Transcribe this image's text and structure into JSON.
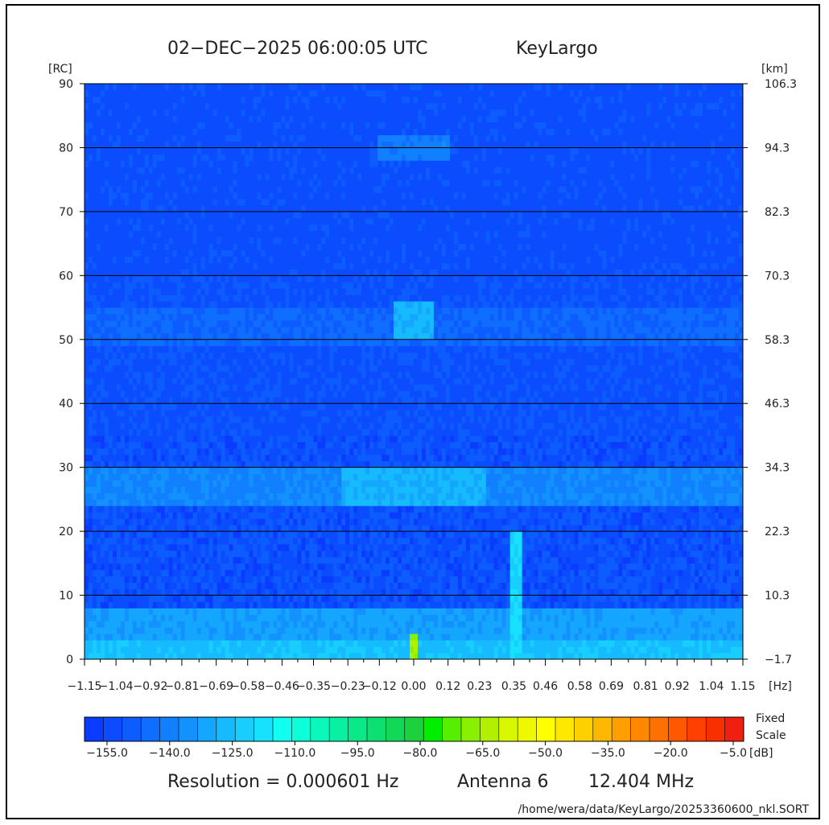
{
  "header": {
    "timestamp": "02−DEC−2025 06:00:05 UTC",
    "station": "KeyLargo"
  },
  "axes": {
    "left_unit": "[RC]",
    "right_unit": "[km]",
    "x_unit": "[Hz]"
  },
  "colorbar": {
    "label_line1": "Fixed",
    "label_line2": "Scale",
    "unit": "[dB]",
    "ticks": [
      "−155.0",
      "−140.0",
      "−125.0",
      "−110.0",
      "−95.0",
      "−80.0",
      "−65.0",
      "−50.0",
      "−35.0",
      "−20.0",
      "−5.0"
    ],
    "colors": [
      "#0a3cff",
      "#0b4cff",
      "#0d5cff",
      "#0f6eff",
      "#1180ff",
      "#1392ff",
      "#15a6ff",
      "#16baff",
      "#17ceff",
      "#16e2ff",
      "#10fff0",
      "#0cffd8",
      "#0af8bc",
      "#0af0a2",
      "#0ae888",
      "#0ce070",
      "#12d858",
      "#1cd040",
      "#00ee00",
      "#58ee00",
      "#88f000",
      "#b0f000",
      "#d8f800",
      "#f0f800",
      "#ffff00",
      "#ffe800",
      "#ffd000",
      "#ffb800",
      "#ffa000",
      "#ff8800",
      "#ff7000",
      "#ff5800",
      "#ff4000",
      "#f83000",
      "#f02010"
    ]
  },
  "footer": {
    "resolution": "Resolution = 0.000601 Hz",
    "antenna": "Antenna  6",
    "frequency": "12.404 MHz",
    "path": "/home/wera/data/KeyLargo/20253360600_nkl.SORT"
  },
  "chart_data": {
    "type": "heatmap",
    "x_label": "[Hz]",
    "y_label_left": "[RC]",
    "y_label_right": "[km]",
    "x_ticks": [
      -1.15,
      -1.04,
      -0.92,
      -0.81,
      -0.69,
      -0.58,
      -0.46,
      -0.35,
      -0.23,
      -0.12,
      0.0,
      0.12,
      0.23,
      0.35,
      0.46,
      0.58,
      0.69,
      0.81,
      0.92,
      1.04,
      1.15
    ],
    "x_tick_labels": [
      "−1.15",
      "−1.04",
      "−0.92",
      "−0.81",
      "−0.69",
      "−0.58",
      "−0.46",
      "−0.35",
      "−0.23",
      "−0.12",
      "0.00",
      "0.12",
      "0.23",
      "0.35",
      "0.46",
      "0.58",
      "0.69",
      "0.81",
      "0.92",
      "1.04",
      "1.15"
    ],
    "y_left_ticks": [
      0,
      10,
      20,
      30,
      40,
      50,
      60,
      70,
      80,
      90
    ],
    "y_right_tick_labels": [
      "−1.7",
      "10.3",
      "22.3",
      "34.3",
      "46.3",
      "58.3",
      "70.3",
      "82.3",
      "94.3",
      "106.3"
    ],
    "xlim": [
      -1.15,
      1.15
    ],
    "ylim": [
      0,
      90
    ],
    "color_scale_db": [
      -160,
      -2.5
    ],
    "background_level_db": -152,
    "features": [
      {
        "x_center": 0.0,
        "y_center": 80,
        "x_halfwidth": 0.12,
        "y_halfwidth": 2,
        "level_db": -140
      },
      {
        "x_center": 0.0,
        "y_center": 53,
        "x_halfwidth": 0.06,
        "y_halfwidth": 2.5,
        "level_db": -128
      },
      {
        "x_center": 0.0,
        "y_center": 52,
        "x_halfwidth": 1.15,
        "y_halfwidth": 3,
        "level_db": -146
      },
      {
        "x_center": 0.0,
        "y_center": 27,
        "x_halfwidth": 1.15,
        "y_halfwidth": 3,
        "level_db": -138
      },
      {
        "x_center": 0.0,
        "y_center": 27,
        "x_halfwidth": 0.25,
        "y_halfwidth": 2.5,
        "level_db": -128
      },
      {
        "x_center": 0.0,
        "y_center": 5,
        "x_halfwidth": 1.15,
        "y_halfwidth": 2.5,
        "level_db": -132
      },
      {
        "x_center": 0.0,
        "y_center": 1.5,
        "x_halfwidth": 1.15,
        "y_halfwidth": 1.5,
        "level_db": -125
      },
      {
        "x_center": 0.0,
        "y_center": 2,
        "x_halfwidth": 0.01,
        "y_halfwidth": 2,
        "level_db": -65
      },
      {
        "x_center": 0.36,
        "y_center": 10,
        "x_halfwidth": 0.01,
        "y_halfwidth": 10,
        "level_db": -120
      }
    ]
  }
}
